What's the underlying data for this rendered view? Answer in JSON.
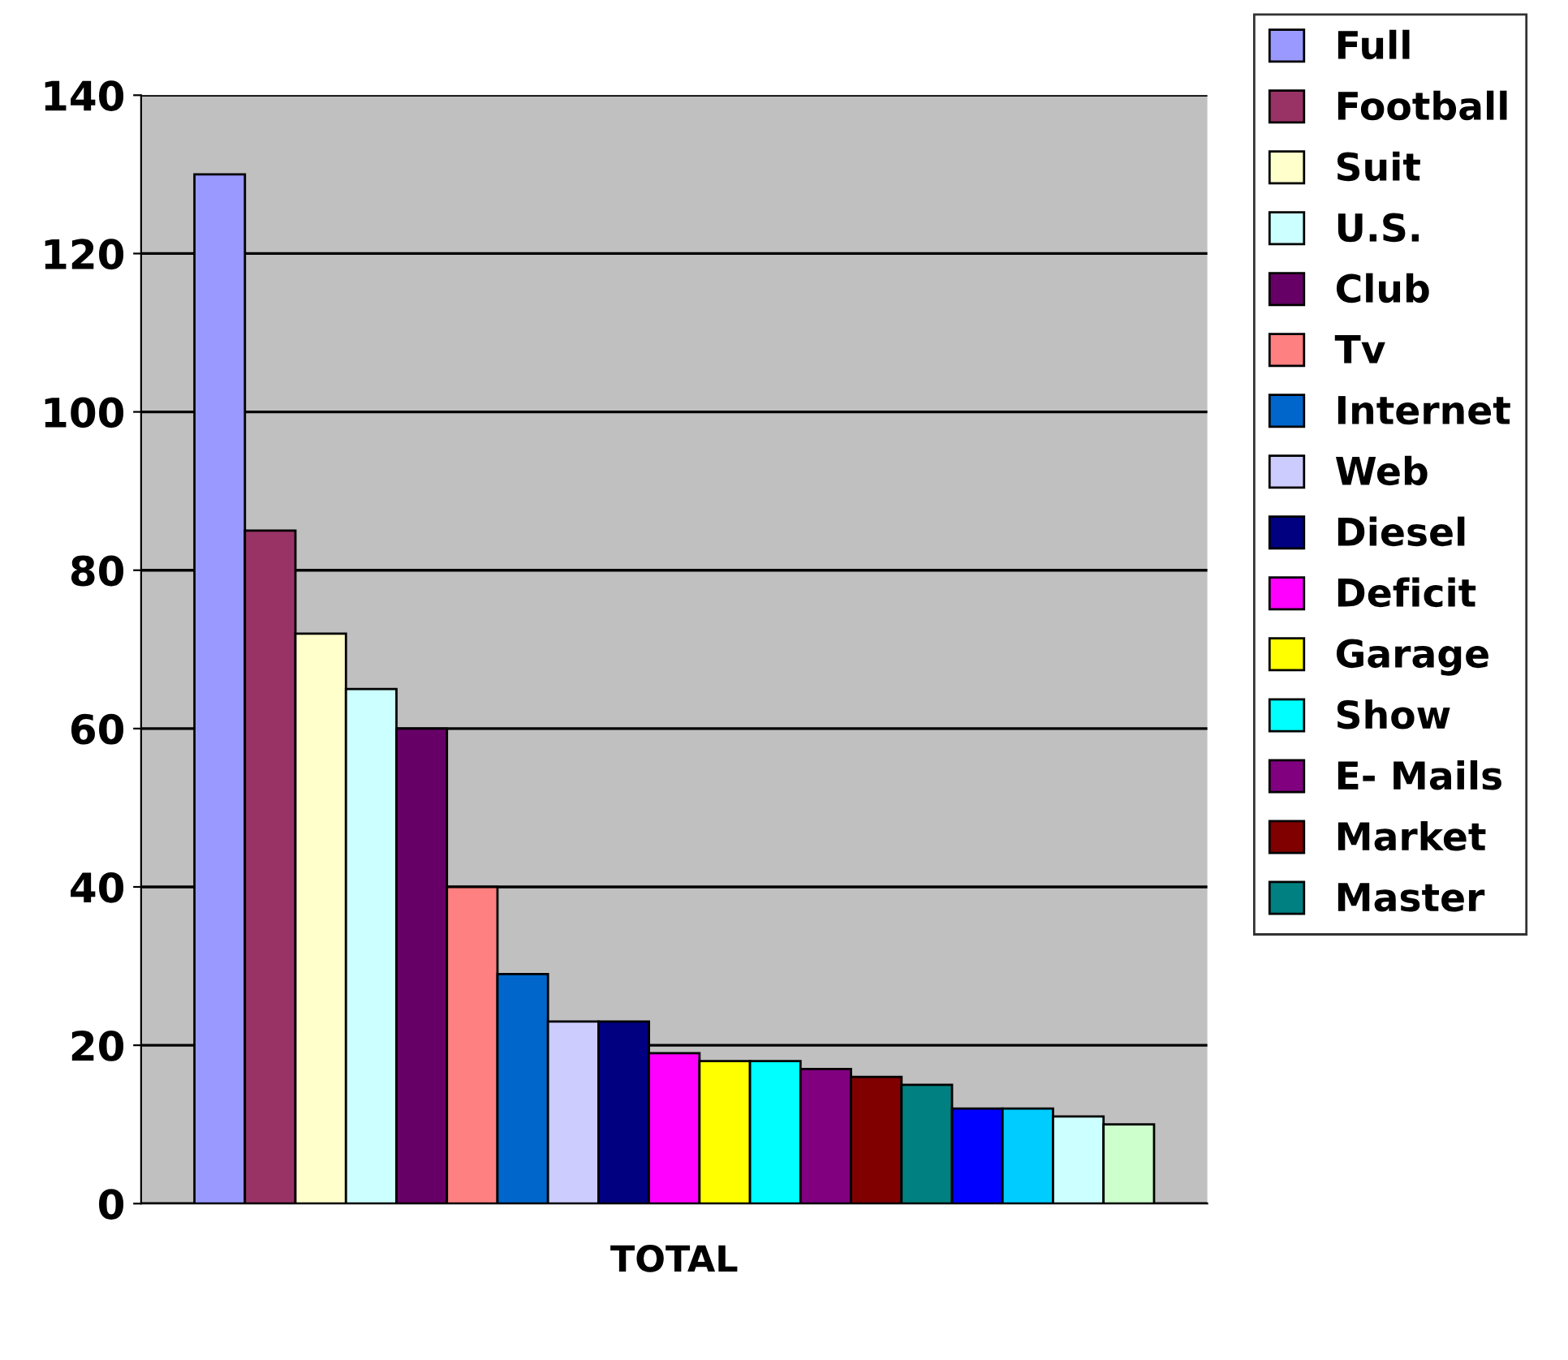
{
  "chart_data": {
    "type": "bar",
    "categories": [
      "TOTAL"
    ],
    "ylim": [
      0,
      140
    ],
    "yticks": [
      0,
      20,
      40,
      60,
      80,
      100,
      120,
      140
    ],
    "grid": "y",
    "legend": "right",
    "series": [
      {
        "name": "Full",
        "color": "#9999ff",
        "values": [
          130
        ]
      },
      {
        "name": "Football",
        "color": "#993366",
        "values": [
          85
        ]
      },
      {
        "name": "Suit",
        "color": "#ffffcc",
        "values": [
          72
        ]
      },
      {
        "name": "U.S.",
        "color": "#ccffff",
        "values": [
          65
        ]
      },
      {
        "name": "Club",
        "color": "#660066",
        "values": [
          60
        ]
      },
      {
        "name": "Tv",
        "color": "#ff8080",
        "values": [
          40
        ]
      },
      {
        "name": "Internet",
        "color": "#0066cc",
        "values": [
          29
        ]
      },
      {
        "name": "Web",
        "color": "#ccccff",
        "values": [
          23
        ]
      },
      {
        "name": "Diesel",
        "color": "#000080",
        "values": [
          23
        ]
      },
      {
        "name": "Deficit",
        "color": "#ff00ff",
        "values": [
          19
        ]
      },
      {
        "name": "Garage",
        "color": "#ffff00",
        "values": [
          18
        ]
      },
      {
        "name": "Show",
        "color": "#00ffff",
        "values": [
          18
        ]
      },
      {
        "name": "E- Mails",
        "color": "#800080",
        "values": [
          17
        ]
      },
      {
        "name": "Market",
        "color": "#800000",
        "values": [
          16
        ]
      },
      {
        "name": "Master",
        "color": "#008080",
        "values": [
          15
        ]
      },
      {
        "color": "#0000ff",
        "values": [
          12
        ]
      },
      {
        "color": "#00ccff",
        "values": [
          12
        ]
      },
      {
        "color": "#ccffff",
        "values": [
          11
        ]
      },
      {
        "color": "#ccffcc",
        "values": [
          10
        ]
      }
    ]
  }
}
